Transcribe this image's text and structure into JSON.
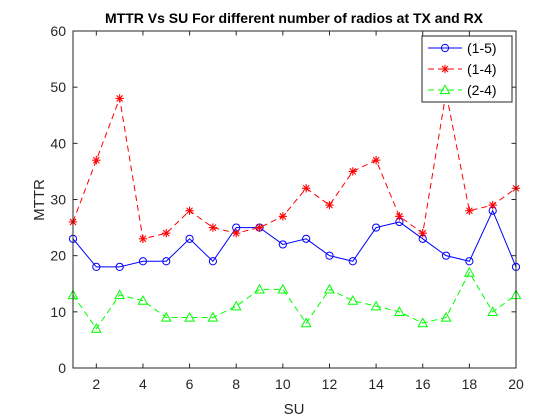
{
  "chart_data": {
    "type": "line",
    "title": "MTTR Vs SU For different number of radios at TX and RX",
    "xlabel": "SU",
    "ylabel": "MTTR",
    "xlim": [
      1,
      20
    ],
    "ylim": [
      0,
      60
    ],
    "xticks": [
      "2",
      "4",
      "6",
      "8",
      "10",
      "12",
      "14",
      "16",
      "18",
      "20"
    ],
    "yticks": [
      "0",
      "10",
      "20",
      "30",
      "40",
      "50",
      "60"
    ],
    "grid": false,
    "legend_position": "top-right",
    "x": [
      1,
      2,
      3,
      4,
      5,
      6,
      7,
      8,
      9,
      10,
      11,
      12,
      13,
      14,
      15,
      16,
      17,
      18,
      19,
      20
    ],
    "series": [
      {
        "name": "(1-5)",
        "color": "#0000ff",
        "line_style": "solid",
        "marker": "circle",
        "values": [
          23,
          18,
          18,
          19,
          19,
          23,
          19,
          25,
          25,
          22,
          23,
          20,
          19,
          25,
          26,
          23,
          20,
          19,
          28,
          18
        ]
      },
      {
        "name": "(1-4)",
        "color": "#ff0000",
        "line_style": "dashed",
        "marker": "asterisk",
        "values": [
          26,
          37,
          48,
          23,
          24,
          28,
          25,
          24,
          25,
          27,
          32,
          29,
          35,
          37,
          27,
          24,
          49,
          28,
          29,
          32
        ]
      },
      {
        "name": "(2-4)",
        "color": "#00ff00",
        "line_style": "dashed",
        "marker": "triangle",
        "values": [
          13,
          7,
          13,
          12,
          9,
          9,
          9,
          11,
          14,
          14,
          8,
          14,
          12,
          11,
          10,
          8,
          9,
          17,
          10,
          13
        ]
      }
    ]
  }
}
